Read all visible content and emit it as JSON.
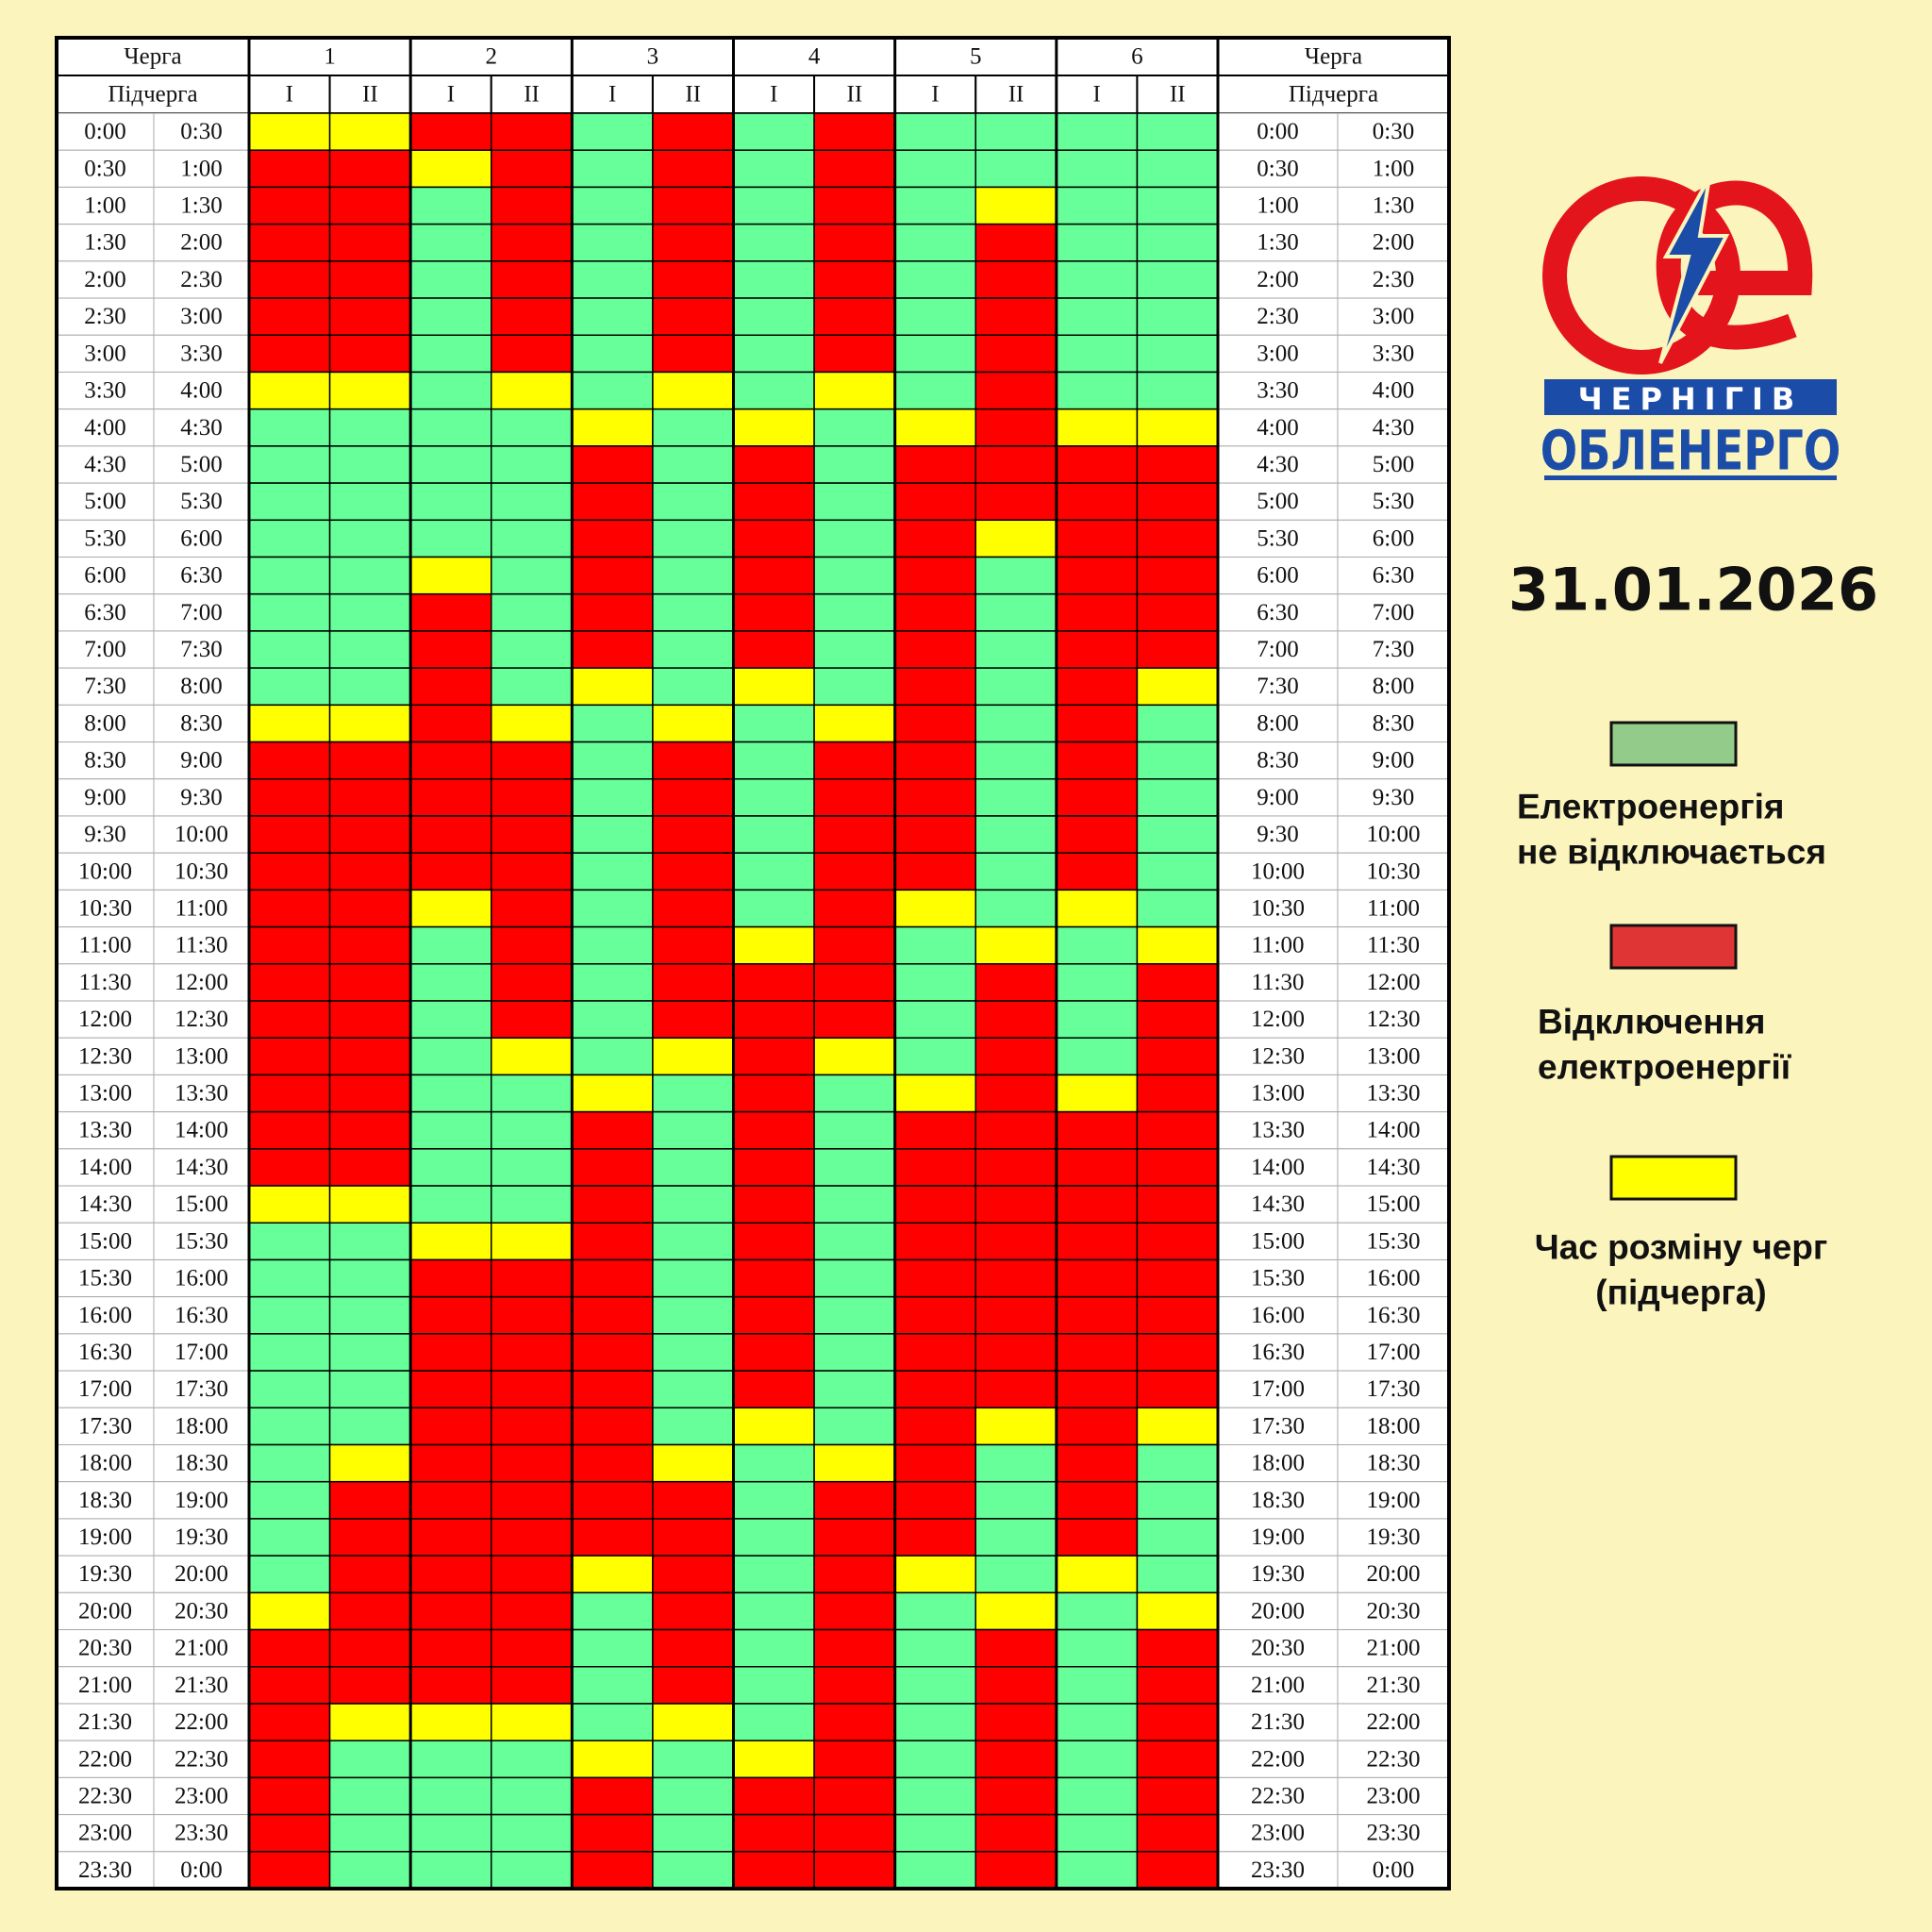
{
  "header": {
    "queue": "Черга",
    "subqueue": "Підчерга",
    "groups": [
      {
        "label": "1",
        "sub": [
          "I",
          "II"
        ]
      },
      {
        "label": "2",
        "sub": [
          "I",
          "II"
        ]
      },
      {
        "label": "3",
        "sub": [
          "I",
          "II"
        ]
      },
      {
        "label": "4",
        "sub": [
          "I",
          "II"
        ]
      },
      {
        "label": "5",
        "sub": [
          "I",
          "II"
        ]
      },
      {
        "label": "6",
        "sub": [
          "I",
          "II"
        ]
      }
    ]
  },
  "logo": {
    "band": "ЧЕРНІГІВ",
    "name": "ОБЛЕНЕРГО"
  },
  "date": "31.01.2026",
  "states": [
    {
      "cell_color": "#66ff99",
      "legend_color": "#93cc8a",
      "label": [
        "Електроенергія",
        "не відключається"
      ]
    },
    {
      "cell_color": "#ff0000",
      "legend_color": "#e03535",
      "label": [
        "Відключення",
        "електроенергії"
      ]
    },
    {
      "cell_color": "#ffff00",
      "legend_color": "#ffff00",
      "label": [
        "Час розміну черг",
        "(підчерга)"
      ]
    }
  ],
  "rows": [
    {
      "start": "0:00",
      "end": "0:30",
      "cells": [
        2,
        2,
        1,
        1,
        0,
        1,
        0,
        1,
        0,
        0,
        0,
        0
      ]
    },
    {
      "start": "0:30",
      "end": "1:00",
      "cells": [
        1,
        1,
        2,
        1,
        0,
        1,
        0,
        1,
        0,
        0,
        0,
        0
      ]
    },
    {
      "start": "1:00",
      "end": "1:30",
      "cells": [
        1,
        1,
        0,
        1,
        0,
        1,
        0,
        1,
        0,
        2,
        0,
        0
      ]
    },
    {
      "start": "1:30",
      "end": "2:00",
      "cells": [
        1,
        1,
        0,
        1,
        0,
        1,
        0,
        1,
        0,
        1,
        0,
        0
      ]
    },
    {
      "start": "2:00",
      "end": "2:30",
      "cells": [
        1,
        1,
        0,
        1,
        0,
        1,
        0,
        1,
        0,
        1,
        0,
        0
      ]
    },
    {
      "start": "2:30",
      "end": "3:00",
      "cells": [
        1,
        1,
        0,
        1,
        0,
        1,
        0,
        1,
        0,
        1,
        0,
        0
      ]
    },
    {
      "start": "3:00",
      "end": "3:30",
      "cells": [
        1,
        1,
        0,
        1,
        0,
        1,
        0,
        1,
        0,
        1,
        0,
        0
      ]
    },
    {
      "start": "3:30",
      "end": "4:00",
      "cells": [
        2,
        2,
        0,
        2,
        0,
        2,
        0,
        2,
        0,
        1,
        0,
        0
      ]
    },
    {
      "start": "4:00",
      "end": "4:30",
      "cells": [
        0,
        0,
        0,
        0,
        2,
        0,
        2,
        0,
        2,
        1,
        2,
        2
      ]
    },
    {
      "start": "4:30",
      "end": "5:00",
      "cells": [
        0,
        0,
        0,
        0,
        1,
        0,
        1,
        0,
        1,
        1,
        1,
        1
      ]
    },
    {
      "start": "5:00",
      "end": "5:30",
      "cells": [
        0,
        0,
        0,
        0,
        1,
        0,
        1,
        0,
        1,
        1,
        1,
        1
      ]
    },
    {
      "start": "5:30",
      "end": "6:00",
      "cells": [
        0,
        0,
        0,
        0,
        1,
        0,
        1,
        0,
        1,
        2,
        1,
        1
      ]
    },
    {
      "start": "6:00",
      "end": "6:30",
      "cells": [
        0,
        0,
        2,
        0,
        1,
        0,
        1,
        0,
        1,
        0,
        1,
        1
      ]
    },
    {
      "start": "6:30",
      "end": "7:00",
      "cells": [
        0,
        0,
        1,
        0,
        1,
        0,
        1,
        0,
        1,
        0,
        1,
        1
      ]
    },
    {
      "start": "7:00",
      "end": "7:30",
      "cells": [
        0,
        0,
        1,
        0,
        1,
        0,
        1,
        0,
        1,
        0,
        1,
        1
      ]
    },
    {
      "start": "7:30",
      "end": "8:00",
      "cells": [
        0,
        0,
        1,
        0,
        2,
        0,
        2,
        0,
        1,
        0,
        1,
        2
      ]
    },
    {
      "start": "8:00",
      "end": "8:30",
      "cells": [
        2,
        2,
        1,
        2,
        0,
        2,
        0,
        2,
        1,
        0,
        1,
        0
      ]
    },
    {
      "start": "8:30",
      "end": "9:00",
      "cells": [
        1,
        1,
        1,
        1,
        0,
        1,
        0,
        1,
        1,
        0,
        1,
        0
      ]
    },
    {
      "start": "9:00",
      "end": "9:30",
      "cells": [
        1,
        1,
        1,
        1,
        0,
        1,
        0,
        1,
        1,
        0,
        1,
        0
      ]
    },
    {
      "start": "9:30",
      "end": "10:00",
      "cells": [
        1,
        1,
        1,
        1,
        0,
        1,
        0,
        1,
        1,
        0,
        1,
        0
      ]
    },
    {
      "start": "10:00",
      "end": "10:30",
      "cells": [
        1,
        1,
        1,
        1,
        0,
        1,
        0,
        1,
        1,
        0,
        1,
        0
      ]
    },
    {
      "start": "10:30",
      "end": "11:00",
      "cells": [
        1,
        1,
        2,
        1,
        0,
        1,
        0,
        1,
        2,
        0,
        2,
        0
      ]
    },
    {
      "start": "11:00",
      "end": "11:30",
      "cells": [
        1,
        1,
        0,
        1,
        0,
        1,
        2,
        1,
        0,
        2,
        0,
        2
      ]
    },
    {
      "start": "11:30",
      "end": "12:00",
      "cells": [
        1,
        1,
        0,
        1,
        0,
        1,
        1,
        1,
        0,
        1,
        0,
        1
      ]
    },
    {
      "start": "12:00",
      "end": "12:30",
      "cells": [
        1,
        1,
        0,
        1,
        0,
        1,
        1,
        1,
        0,
        1,
        0,
        1
      ]
    },
    {
      "start": "12:30",
      "end": "13:00",
      "cells": [
        1,
        1,
        0,
        2,
        0,
        2,
        1,
        2,
        0,
        1,
        0,
        1
      ]
    },
    {
      "start": "13:00",
      "end": "13:30",
      "cells": [
        1,
        1,
        0,
        0,
        2,
        0,
        1,
        0,
        2,
        1,
        2,
        1
      ]
    },
    {
      "start": "13:30",
      "end": "14:00",
      "cells": [
        1,
        1,
        0,
        0,
        1,
        0,
        1,
        0,
        1,
        1,
        1,
        1
      ]
    },
    {
      "start": "14:00",
      "end": "14:30",
      "cells": [
        1,
        1,
        0,
        0,
        1,
        0,
        1,
        0,
        1,
        1,
        1,
        1
      ]
    },
    {
      "start": "14:30",
      "end": "15:00",
      "cells": [
        2,
        2,
        0,
        0,
        1,
        0,
        1,
        0,
        1,
        1,
        1,
        1
      ]
    },
    {
      "start": "15:00",
      "end": "15:30",
      "cells": [
        0,
        0,
        2,
        2,
        1,
        0,
        1,
        0,
        1,
        1,
        1,
        1
      ]
    },
    {
      "start": "15:30",
      "end": "16:00",
      "cells": [
        0,
        0,
        1,
        1,
        1,
        0,
        1,
        0,
        1,
        1,
        1,
        1
      ]
    },
    {
      "start": "16:00",
      "end": "16:30",
      "cells": [
        0,
        0,
        1,
        1,
        1,
        0,
        1,
        0,
        1,
        1,
        1,
        1
      ]
    },
    {
      "start": "16:30",
      "end": "17:00",
      "cells": [
        0,
        0,
        1,
        1,
        1,
        0,
        1,
        0,
        1,
        1,
        1,
        1
      ]
    },
    {
      "start": "17:00",
      "end": "17:30",
      "cells": [
        0,
        0,
        1,
        1,
        1,
        0,
        1,
        0,
        1,
        1,
        1,
        1
      ]
    },
    {
      "start": "17:30",
      "end": "18:00",
      "cells": [
        0,
        0,
        1,
        1,
        1,
        0,
        2,
        0,
        1,
        2,
        1,
        2
      ]
    },
    {
      "start": "18:00",
      "end": "18:30",
      "cells": [
        0,
        2,
        1,
        1,
        1,
        2,
        0,
        2,
        1,
        0,
        1,
        0
      ]
    },
    {
      "start": "18:30",
      "end": "19:00",
      "cells": [
        0,
        1,
        1,
        1,
        1,
        1,
        0,
        1,
        1,
        0,
        1,
        0
      ]
    },
    {
      "start": "19:00",
      "end": "19:30",
      "cells": [
        0,
        1,
        1,
        1,
        1,
        1,
        0,
        1,
        1,
        0,
        1,
        0
      ]
    },
    {
      "start": "19:30",
      "end": "20:00",
      "cells": [
        0,
        1,
        1,
        1,
        2,
        1,
        0,
        1,
        2,
        0,
        2,
        0
      ]
    },
    {
      "start": "20:00",
      "end": "20:30",
      "cells": [
        2,
        1,
        1,
        1,
        0,
        1,
        0,
        1,
        0,
        2,
        0,
        2
      ]
    },
    {
      "start": "20:30",
      "end": "21:00",
      "cells": [
        1,
        1,
        1,
        1,
        0,
        1,
        0,
        1,
        0,
        1,
        0,
        1
      ]
    },
    {
      "start": "21:00",
      "end": "21:30",
      "cells": [
        1,
        1,
        1,
        1,
        0,
        1,
        0,
        1,
        0,
        1,
        0,
        1
      ]
    },
    {
      "start": "21:30",
      "end": "22:00",
      "cells": [
        1,
        2,
        2,
        2,
        0,
        2,
        0,
        1,
        0,
        1,
        0,
        1
      ]
    },
    {
      "start": "22:00",
      "end": "22:30",
      "cells": [
        1,
        0,
        0,
        0,
        2,
        0,
        2,
        1,
        0,
        1,
        0,
        1
      ]
    },
    {
      "start": "22:30",
      "end": "23:00",
      "cells": [
        1,
        0,
        0,
        0,
        1,
        0,
        1,
        1,
        0,
        1,
        0,
        1
      ]
    },
    {
      "start": "23:00",
      "end": "23:30",
      "cells": [
        1,
        0,
        0,
        0,
        1,
        0,
        1,
        1,
        0,
        1,
        0,
        1
      ]
    },
    {
      "start": "23:30",
      "end": "0:00",
      "cells": [
        1,
        0,
        0,
        0,
        1,
        0,
        1,
        1,
        0,
        1,
        0,
        1
      ]
    }
  ]
}
